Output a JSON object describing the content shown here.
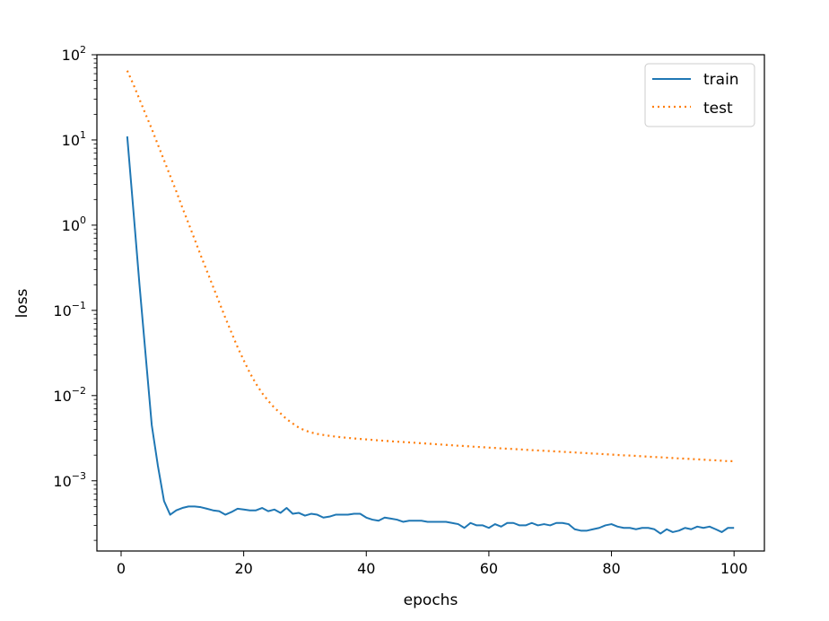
{
  "chart_data": {
    "type": "line",
    "xlabel": "epochs",
    "ylabel": "loss",
    "yscale": "log",
    "xlim": [
      -3.95,
      104.95
    ],
    "ylim": [
      0.00015,
      100
    ],
    "x_ticks": [
      0,
      20,
      40,
      60,
      80,
      100
    ],
    "x_tick_labels": [
      "0",
      "20",
      "40",
      "60",
      "80",
      "100"
    ],
    "y_ticks": [
      0.001,
      0.01,
      0.1,
      1,
      10,
      100
    ],
    "y_tick_labels": [
      {
        "base": "10",
        "exp": "−3"
      },
      {
        "base": "10",
        "exp": "−2"
      },
      {
        "base": "10",
        "exp": "−1"
      },
      {
        "base": "10",
        "exp": "0"
      },
      {
        "base": "10",
        "exp": "1"
      },
      {
        "base": "10",
        "exp": "2"
      }
    ],
    "grid": false,
    "legend_position": "top-right",
    "series": [
      {
        "name": "train",
        "color": "#1f77b4",
        "style": "solid",
        "x": [
          1,
          2,
          3,
          4,
          5,
          6,
          7,
          8,
          9,
          10,
          11,
          12,
          13,
          14,
          15,
          16,
          17,
          18,
          19,
          20,
          21,
          22,
          23,
          24,
          25,
          26,
          27,
          28,
          29,
          30,
          31,
          32,
          33,
          34,
          35,
          36,
          37,
          38,
          39,
          40,
          41,
          42,
          43,
          44,
          45,
          46,
          47,
          48,
          49,
          50,
          51,
          52,
          53,
          54,
          55,
          56,
          57,
          58,
          59,
          60,
          61,
          62,
          63,
          64,
          65,
          66,
          67,
          68,
          69,
          70,
          71,
          72,
          73,
          74,
          75,
          76,
          77,
          78,
          79,
          80,
          81,
          82,
          83,
          84,
          85,
          86,
          87,
          88,
          89,
          90,
          91,
          92,
          93,
          94,
          95,
          96,
          97,
          98,
          99,
          100
        ],
        "y": [
          11,
          1.5,
          0.2,
          0.03,
          0.0045,
          0.0015,
          0.00058,
          0.0004,
          0.00045,
          0.00048,
          0.0005,
          0.0005,
          0.00049,
          0.00047,
          0.00045,
          0.00044,
          0.0004,
          0.00043,
          0.00047,
          0.00046,
          0.00045,
          0.00045,
          0.00048,
          0.00044,
          0.00046,
          0.00042,
          0.00048,
          0.00041,
          0.00042,
          0.00039,
          0.00041,
          0.0004,
          0.00037,
          0.00038,
          0.0004,
          0.0004,
          0.0004,
          0.00041,
          0.00041,
          0.00037,
          0.00035,
          0.00034,
          0.00037,
          0.00036,
          0.00035,
          0.00033,
          0.00034,
          0.00034,
          0.00034,
          0.00033,
          0.00033,
          0.00033,
          0.00033,
          0.00032,
          0.00031,
          0.00028,
          0.00032,
          0.0003,
          0.0003,
          0.00028,
          0.00031,
          0.00029,
          0.00032,
          0.00032,
          0.0003,
          0.0003,
          0.00032,
          0.0003,
          0.00031,
          0.0003,
          0.00032,
          0.00032,
          0.00031,
          0.00027,
          0.00026,
          0.00026,
          0.00027,
          0.00028,
          0.0003,
          0.00031,
          0.00029,
          0.00028,
          0.00028,
          0.00027,
          0.00028,
          0.00028,
          0.00027,
          0.00024,
          0.00027,
          0.00025,
          0.00026,
          0.00028,
          0.00027,
          0.00029,
          0.00028,
          0.00029,
          0.00027,
          0.00025,
          0.00028,
          0.00028
        ]
      },
      {
        "name": "test",
        "color": "#ff7f0e",
        "style": "dotted",
        "x": [
          1,
          2,
          3,
          4,
          5,
          6,
          7,
          8,
          9,
          10,
          11,
          12,
          13,
          14,
          15,
          16,
          17,
          18,
          19,
          20,
          21,
          22,
          23,
          24,
          25,
          26,
          27,
          28,
          29,
          30,
          31,
          32,
          33,
          34,
          35,
          36,
          37,
          38,
          39,
          40,
          41,
          42,
          43,
          44,
          45,
          46,
          47,
          48,
          49,
          50,
          51,
          52,
          53,
          54,
          55,
          56,
          57,
          58,
          59,
          60,
          61,
          62,
          63,
          64,
          65,
          66,
          67,
          68,
          69,
          70,
          71,
          72,
          73,
          74,
          75,
          76,
          77,
          78,
          79,
          80,
          81,
          82,
          83,
          84,
          85,
          86,
          87,
          88,
          89,
          90,
          91,
          92,
          93,
          94,
          95,
          96,
          97,
          98,
          99,
          100
        ],
        "y": [
          65,
          45,
          30,
          20,
          13.5,
          8.8,
          5.8,
          3.8,
          2.5,
          1.6,
          1.05,
          0.68,
          0.44,
          0.29,
          0.19,
          0.125,
          0.082,
          0.055,
          0.037,
          0.026,
          0.0185,
          0.0138,
          0.0107,
          0.0087,
          0.0072,
          0.0062,
          0.0053,
          0.0047,
          0.0042,
          0.0039,
          0.00369,
          0.00355,
          0.00345,
          0.00337,
          0.0033,
          0.00324,
          0.00319,
          0.00314,
          0.0031,
          0.00306,
          0.00302,
          0.00298,
          0.00295,
          0.00291,
          0.00288,
          0.00285,
          0.00282,
          0.00279,
          0.00276,
          0.00273,
          0.0027,
          0.00267,
          0.00264,
          0.00261,
          0.00258,
          0.00256,
          0.00253,
          0.0025,
          0.00248,
          0.00245,
          0.00243,
          0.0024,
          0.00238,
          0.00236,
          0.00234,
          0.00231,
          0.00229,
          0.00227,
          0.00225,
          0.00223,
          0.00221,
          0.00219,
          0.00217,
          0.00215,
          0.00213,
          0.00211,
          0.00209,
          0.00207,
          0.00205,
          0.00203,
          0.00201,
          0.00199,
          0.00198,
          0.00196,
          0.00194,
          0.00192,
          0.0019,
          0.00189,
          0.00187,
          0.00185,
          0.00183,
          0.00182,
          0.0018,
          0.00179,
          0.00177,
          0.00175,
          0.00174,
          0.00172,
          0.0017,
          0.0017
        ]
      }
    ]
  }
}
